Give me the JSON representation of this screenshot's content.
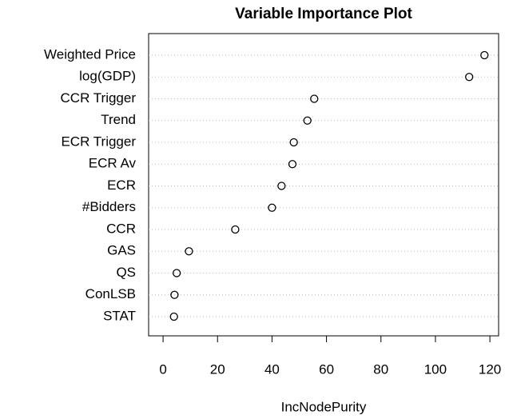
{
  "chart_data": {
    "type": "dot",
    "title": "Variable Importance Plot",
    "x_label": "IncNodePurity",
    "categories": [
      "Weighted Price",
      "log(GDP)",
      "CCR Trigger",
      "Trend",
      "ECR Trigger",
      "ECR Av",
      "ECR",
      "#Bidders",
      "CCR",
      "GAS",
      "QS",
      "ConLSB",
      "STAT"
    ],
    "values": [
      118,
      112.4,
      55.5,
      53,
      48,
      47.5,
      43.5,
      40,
      26.5,
      9.5,
      5,
      4.2,
      4
    ],
    "color": "#000000",
    "xlim": [
      -5.3,
      123.2
    ],
    "xticks": [
      0,
      20,
      40,
      60,
      80,
      100,
      120
    ],
    "grid": true
  }
}
